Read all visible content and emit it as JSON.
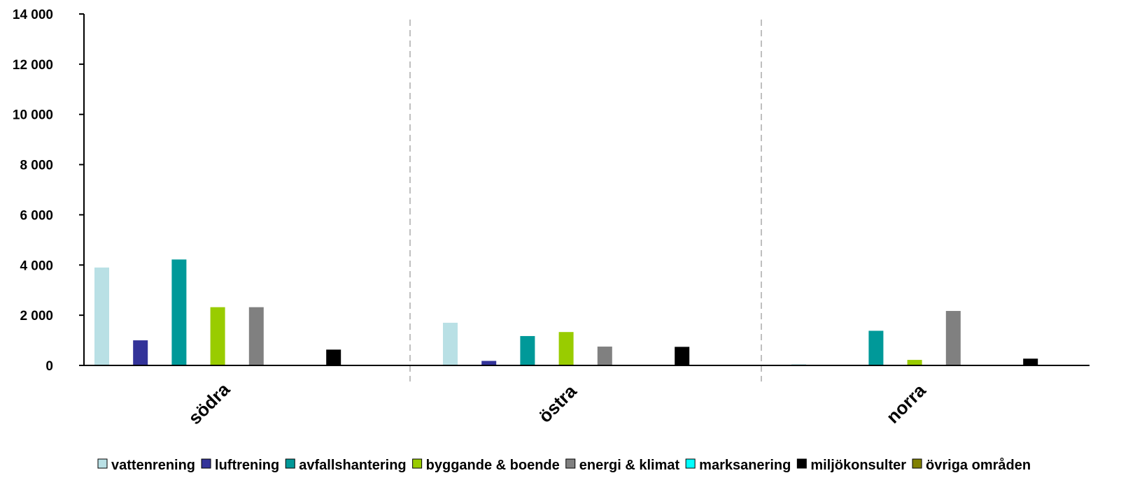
{
  "chart_data": {
    "type": "bar",
    "categories": [
      "södra",
      "östra",
      "norra"
    ],
    "series": [
      {
        "name": "vattenrening",
        "color": "#b9e0e5",
        "values": [
          3900,
          1700,
          50
        ]
      },
      {
        "name": "luftrening",
        "color": "#333399",
        "values": [
          1000,
          180,
          0
        ]
      },
      {
        "name": "avfallshantering",
        "color": "#009999",
        "values": [
          4220,
          1170,
          1380
        ]
      },
      {
        "name": "byggande & boende",
        "color": "#99cc00",
        "values": [
          2320,
          1330,
          220
        ]
      },
      {
        "name": "energi & klimat",
        "color": "#808080",
        "values": [
          2320,
          750,
          2170
        ]
      },
      {
        "name": "marksanering",
        "color": "#00ffff",
        "values": [
          0,
          0,
          0
        ]
      },
      {
        "name": "miljökonsulter",
        "color": "#000000",
        "values": [
          630,
          740,
          270
        ]
      },
      {
        "name": "övriga områden",
        "color": "#808000",
        "values": [
          0,
          0,
          0
        ]
      }
    ],
    "y_ticks": [
      "0",
      "2 000",
      "4 000",
      "6 000",
      "8 000",
      "10 000",
      "12 000",
      "14 000"
    ],
    "ylim": [
      0,
      14000
    ],
    "grid": false,
    "legend_position": "bottom"
  }
}
